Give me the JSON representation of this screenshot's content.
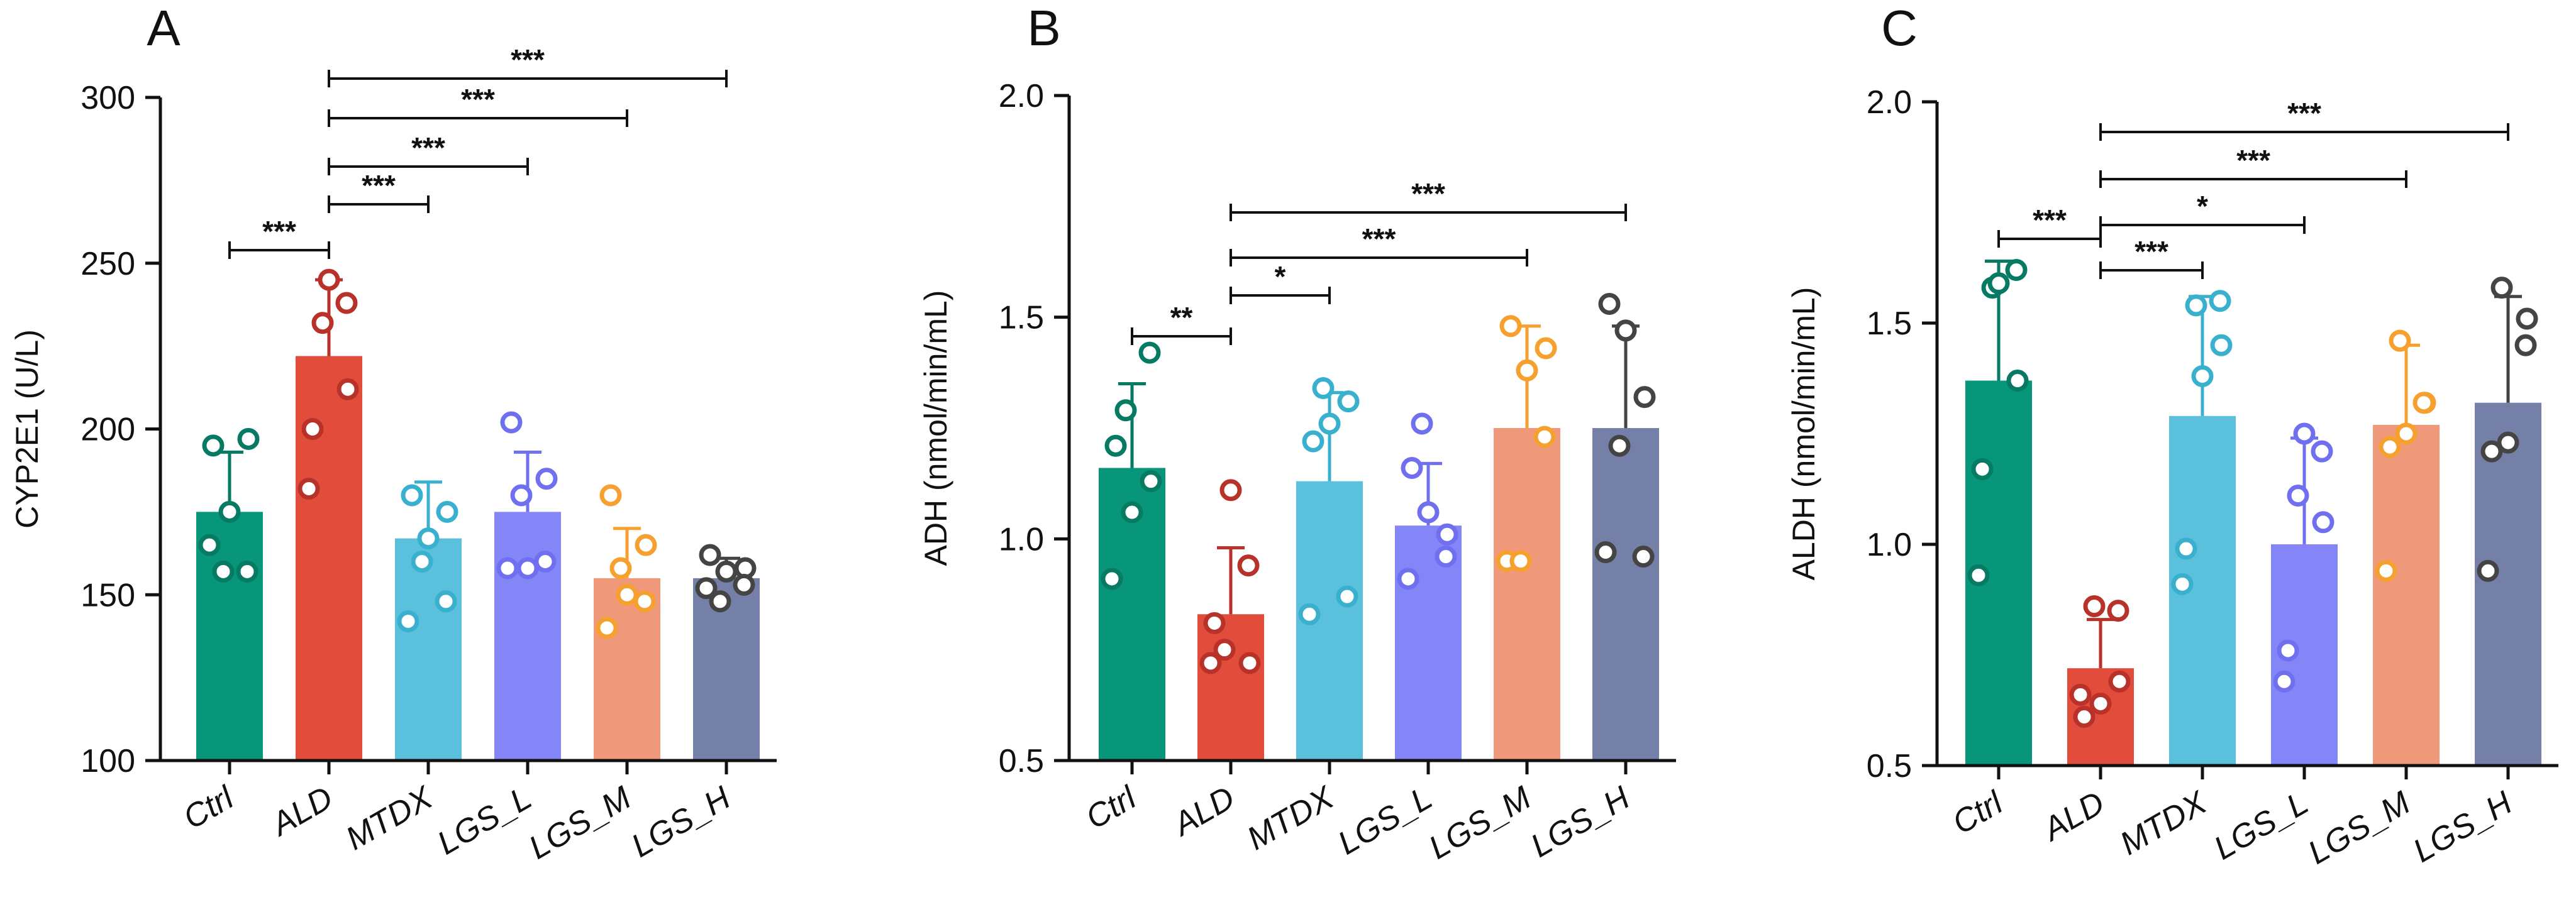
{
  "chart_data": [
    {
      "panel": "A",
      "type": "bar",
      "ylabel": "CYP2E1 (U/L)",
      "ylim": [
        100,
        300
      ],
      "yticks": [
        100,
        150,
        200,
        250,
        300
      ],
      "ytick_labels": [
        "100",
        "150",
        "200",
        "250",
        "300"
      ],
      "categories": [
        "Ctrl",
        "ALD",
        "MTDX",
        "LGS_L",
        "LGS_M",
        "LGS_H"
      ],
      "colors": [
        "#08967a",
        "#e14c3b",
        "#5bc0db",
        "#8485f6",
        "#f0987a",
        "#7580a8"
      ],
      "marker_colors": [
        "#067a63",
        "#b8322a",
        "#3ab0cf",
        "#6f6ff0",
        "#f6a030",
        "#444444"
      ],
      "means": [
        175,
        222,
        167,
        175,
        155,
        155
      ],
      "errors": [
        18,
        23,
        17,
        18,
        15,
        6
      ],
      "points": [
        [
          165,
          195,
          197,
          157,
          157,
          175
        ],
        [
          182,
          200,
          212,
          232,
          238,
          245
        ],
        [
          142,
          180,
          175,
          160,
          148,
          167
        ],
        [
          158,
          202,
          185,
          180,
          160,
          158
        ],
        [
          140,
          180,
          165,
          158,
          148,
          150
        ],
        [
          152,
          162,
          158,
          148,
          153,
          157
        ]
      ],
      "significance": [
        {
          "from": 0,
          "to": 1,
          "label": "***"
        },
        {
          "from": 1,
          "to": 2,
          "label": "***"
        },
        {
          "from": 1,
          "to": 3,
          "label": "***"
        },
        {
          "from": 1,
          "to": 4,
          "label": "***"
        },
        {
          "from": 1,
          "to": 5,
          "label": "***"
        }
      ]
    },
    {
      "panel": "B",
      "type": "bar",
      "ylabel": "ADH (nmol/min/mL)",
      "ylim": [
        0.5,
        2.0
      ],
      "yticks": [
        0.5,
        1.0,
        1.5,
        2.0
      ],
      "ytick_labels": [
        "0.5",
        "1.0",
        "1.5",
        "2.0"
      ],
      "categories": [
        "Ctrl",
        "ALD",
        "MTDX",
        "LGS_L",
        "LGS_M",
        "LGS_H"
      ],
      "colors": [
        "#08967a",
        "#e14c3b",
        "#5bc0db",
        "#8485f6",
        "#f0987a",
        "#7580a8"
      ],
      "marker_colors": [
        "#067a63",
        "#b8322a",
        "#3ab0cf",
        "#6f6ff0",
        "#f6a030",
        "#444444"
      ],
      "means": [
        1.16,
        0.83,
        1.13,
        1.03,
        1.25,
        1.25
      ],
      "errors": [
        0.19,
        0.15,
        0.2,
        0.14,
        0.23,
        0.23
      ],
      "points": [
        [
          0.91,
          1.21,
          1.13,
          1.29,
          1.42,
          1.06
        ],
        [
          0.72,
          0.81,
          0.72,
          0.75,
          0.94,
          1.11
        ],
        [
          0.83,
          1.22,
          1.31,
          1.34,
          0.87,
          1.26
        ],
        [
          0.91,
          1.16,
          1.01,
          1.26,
          0.96,
          1.06
        ],
        [
          0.95,
          1.48,
          1.43,
          0.95,
          1.23,
          1.38
        ],
        [
          0.97,
          1.53,
          1.32,
          1.21,
          0.96,
          1.47
        ]
      ],
      "significance": [
        {
          "from": 0,
          "to": 1,
          "label": "**"
        },
        {
          "from": 1,
          "to": 2,
          "label": "*"
        },
        {
          "from": 1,
          "to": 4,
          "label": "***"
        },
        {
          "from": 1,
          "to": 5,
          "label": "***"
        }
      ]
    },
    {
      "panel": "C",
      "type": "bar",
      "ylabel": "ALDH (nmol/min/mL)",
      "ylim": [
        0.5,
        2.0
      ],
      "yticks": [
        0.5,
        1.0,
        1.5,
        2.0
      ],
      "ytick_labels": [
        "0.5",
        "1.0",
        "1.5",
        "2.0"
      ],
      "categories": [
        "Ctrl",
        "ALD",
        "MTDX",
        "LGS_L",
        "LGS_M",
        "LGS_H"
      ],
      "colors": [
        "#08967a",
        "#e14c3b",
        "#5bc0db",
        "#8485f6",
        "#f0987a",
        "#7580a8"
      ],
      "marker_colors": [
        "#067a63",
        "#b8322a",
        "#3ab0cf",
        "#6f6ff0",
        "#f6a030",
        "#444444"
      ],
      "means": [
        1.37,
        0.72,
        1.29,
        1.0,
        1.27,
        1.32
      ],
      "errors": [
        0.27,
        0.11,
        0.27,
        0.24,
        0.18,
        0.24
      ],
      "points": [
        [
          0.93,
          1.17,
          1.37,
          1.58,
          1.62,
          1.59
        ],
        [
          0.66,
          0.61,
          0.69,
          0.86,
          0.85,
          0.64
        ],
        [
          0.91,
          0.99,
          1.45,
          1.54,
          1.55,
          1.38
        ],
        [
          0.69,
          0.76,
          1.05,
          1.11,
          1.21,
          1.25
        ],
        [
          0.94,
          1.22,
          1.32,
          1.46,
          1.32,
          1.25
        ],
        [
          0.94,
          1.21,
          1.51,
          1.58,
          1.45,
          1.23
        ]
      ],
      "significance": [
        {
          "from": 0,
          "to": 1,
          "label": "***"
        },
        {
          "from": 1,
          "to": 2,
          "label": "***"
        },
        {
          "from": 1,
          "to": 3,
          "label": "*"
        },
        {
          "from": 1,
          "to": 4,
          "label": "***"
        },
        {
          "from": 1,
          "to": 5,
          "label": "***"
        }
      ]
    }
  ]
}
